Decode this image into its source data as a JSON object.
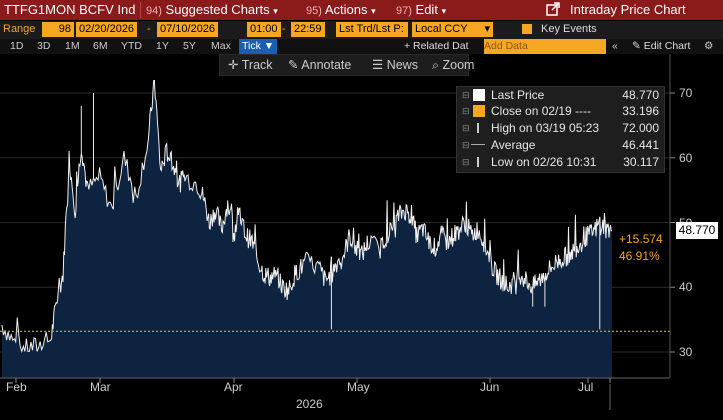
{
  "topbar": {
    "ticker": "TTFG1MON BCFV Ind",
    "menus": [
      {
        "num": "94)",
        "label": "Suggested Charts",
        "caret": "▾"
      },
      {
        "num": "95)",
        "label": "Actions",
        "caret": "▾"
      },
      {
        "num": "97)",
        "label": "Edit",
        "caret": "▾"
      }
    ],
    "title": "Intraday Price Chart"
  },
  "rangebar": {
    "range_label": "Range",
    "range_value": "98",
    "start_date": "02/20/2026",
    "end_date": "07/10/2026",
    "start_time": "01:00",
    "end_time": "22:59",
    "field": "Lst Trd/Lst P:",
    "currency": "Local CCY",
    "key_events": "Key Events"
  },
  "periodbar": {
    "periods": [
      "1D",
      "3D",
      "1M",
      "6M",
      "YTD",
      "1Y",
      "5Y",
      "Max"
    ],
    "tick": "Tick ▼",
    "related": "+ Related Dat",
    "add_data_placeholder": "Add Data",
    "edit_chart": "Edit Chart"
  },
  "toolbar": {
    "track": "Track",
    "annotate": "Annotate",
    "news": "News",
    "zoom": "Zoom"
  },
  "legend": {
    "rows": [
      {
        "label": "Last Price",
        "value": "48.770"
      },
      {
        "label": "Close on 02/19 ----",
        "value": "33.196"
      },
      {
        "label": "High on 03/19 05:23",
        "value": "72.000"
      },
      {
        "label": "Average",
        "value": "46.441"
      },
      {
        "label": "Low on 02/26 10:31",
        "value": "30.117"
      }
    ]
  },
  "colors": {
    "accent": "#f5a623",
    "topbar": "#8b1a1a",
    "area_fill": "#0d2340",
    "tick_button": "#1a5fb4"
  },
  "chart_data": {
    "type": "area",
    "series_name": "Last Price",
    "y_ticks": [
      "70",
      "60",
      "50",
      "40",
      "30"
    ],
    "ylim": [
      25,
      74
    ],
    "x_ticks": [
      "Feb",
      "Mar",
      "Apr",
      "May",
      "Jun",
      "Jul"
    ],
    "year": "2026",
    "last_value": "48.770",
    "change": "+15.574",
    "change_pct": "46.91%",
    "prev_close": 33.196,
    "points": [
      [
        0,
        34.2
      ],
      [
        0.02,
        31.5
      ],
      [
        0.04,
        30.5
      ],
      [
        0.06,
        31.0
      ],
      [
        0.08,
        32.0
      ],
      [
        0.09,
        38
      ],
      [
        0.1,
        42
      ],
      [
        0.11,
        60
      ],
      [
        0.12,
        52
      ],
      [
        0.13,
        62
      ],
      [
        0.14,
        55
      ],
      [
        0.16,
        57
      ],
      [
        0.18,
        52
      ],
      [
        0.2,
        60
      ],
      [
        0.22,
        54
      ],
      [
        0.24,
        63
      ],
      [
        0.25,
        72
      ],
      [
        0.26,
        58
      ],
      [
        0.27,
        61
      ],
      [
        0.28,
        59
      ],
      [
        0.29,
        56
      ],
      [
        0.3,
        57
      ],
      [
        0.32,
        56
      ],
      [
        0.33,
        54
      ],
      [
        0.34,
        50
      ],
      [
        0.35,
        52
      ],
      [
        0.36,
        49
      ],
      [
        0.37,
        53
      ],
      [
        0.38,
        49
      ],
      [
        0.39,
        51
      ],
      [
        0.4,
        48
      ],
      [
        0.41,
        47
      ],
      [
        0.42,
        44
      ],
      [
        0.43,
        42
      ],
      [
        0.44,
        41.5
      ],
      [
        0.45,
        42
      ],
      [
        0.46,
        40
      ],
      [
        0.47,
        39.5
      ],
      [
        0.48,
        42
      ],
      [
        0.49,
        43
      ],
      [
        0.5,
        44
      ],
      [
        0.52,
        43
      ],
      [
        0.53,
        41
      ],
      [
        0.54,
        42
      ],
      [
        0.55,
        44
      ],
      [
        0.56,
        45
      ],
      [
        0.57,
        48
      ],
      [
        0.58,
        46
      ],
      [
        0.59,
        45
      ],
      [
        0.6,
        47
      ],
      [
        0.62,
        46
      ],
      [
        0.63,
        48
      ],
      [
        0.64,
        49
      ],
      [
        0.65,
        51
      ],
      [
        0.66,
        52
      ],
      [
        0.67,
        51
      ],
      [
        0.68,
        48
      ],
      [
        0.69,
        49
      ],
      [
        0.7,
        47
      ],
      [
        0.71,
        46
      ],
      [
        0.72,
        48
      ],
      [
        0.73,
        47
      ],
      [
        0.74,
        48
      ],
      [
        0.75,
        49
      ],
      [
        0.76,
        50
      ],
      [
        0.77,
        48
      ],
      [
        0.78,
        49
      ],
      [
        0.79,
        47
      ],
      [
        0.8,
        44
      ],
      [
        0.81,
        42
      ],
      [
        0.82,
        41
      ],
      [
        0.83,
        40
      ],
      [
        0.84,
        41
      ],
      [
        0.85,
        42
      ],
      [
        0.86,
        41
      ],
      [
        0.87,
        40
      ],
      [
        0.88,
        41
      ],
      [
        0.89,
        42
      ],
      [
        0.9,
        43
      ],
      [
        0.91,
        44
      ],
      [
        0.92,
        44.5
      ],
      [
        0.93,
        45
      ],
      [
        0.94,
        46
      ],
      [
        0.95,
        47
      ],
      [
        0.96,
        48
      ],
      [
        0.97,
        48.5
      ],
      [
        0.98,
        50
      ],
      [
        0.99,
        49
      ],
      [
        1.0,
        48.77
      ]
    ]
  }
}
